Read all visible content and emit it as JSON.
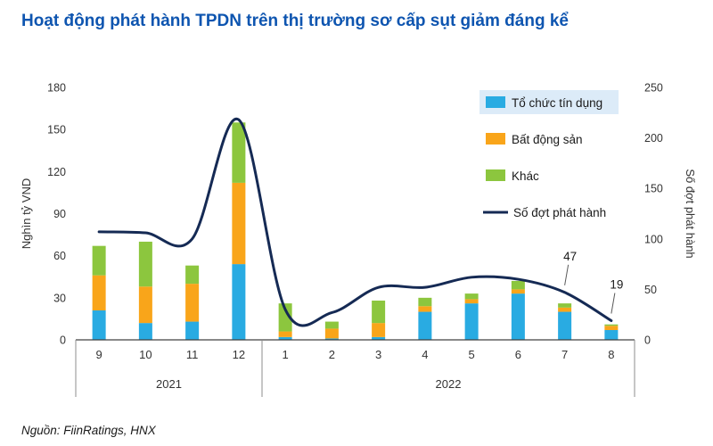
{
  "source": "Nguồn: FiinRatings, HNX",
  "chart_data": {
    "type": "combo-stacked-bar-line",
    "title": "Hoạt động phát hành TPDN trên thị trường sơ cấp sụt giảm đáng kể",
    "categories": [
      "9",
      "10",
      "11",
      "12",
      "1",
      "2",
      "3",
      "4",
      "5",
      "6",
      "7",
      "8"
    ],
    "year_groups": [
      {
        "label": "2021",
        "span": 4
      },
      {
        "label": "2022",
        "span": 8
      }
    ],
    "bar_series": [
      {
        "name": "Tổ chức tín dụng",
        "color": "#29ABE2",
        "values": [
          21,
          12,
          13,
          54,
          2,
          1,
          2,
          20,
          26,
          33,
          20,
          7
        ]
      },
      {
        "name": "Bất động sản",
        "color": "#F9A51A",
        "values": [
          25,
          26,
          27,
          58,
          4,
          7,
          10,
          4,
          3,
          3,
          3,
          3
        ]
      },
      {
        "name": "Khác",
        "color": "#8CC63E",
        "values": [
          21,
          32,
          13,
          43,
          20,
          5,
          16,
          6,
          4,
          6,
          3,
          1
        ]
      }
    ],
    "line_series": {
      "name": "Số đợt phát hành",
      "color": "#152A54",
      "values": [
        107,
        106,
        100,
        218,
        30,
        27,
        52,
        52,
        62,
        60,
        47,
        19
      ]
    },
    "left_axis": {
      "label": "Nghìn tỷ VND",
      "min": 0,
      "max": 180,
      "step": 30
    },
    "right_axis": {
      "label": "Số đợt phát hành",
      "min": 0,
      "max": 250,
      "step": 50
    },
    "annotations": [
      {
        "index": 10,
        "text": "47"
      },
      {
        "index": 11,
        "text": "19"
      }
    ],
    "legend_position": "top-right",
    "grid": false
  }
}
